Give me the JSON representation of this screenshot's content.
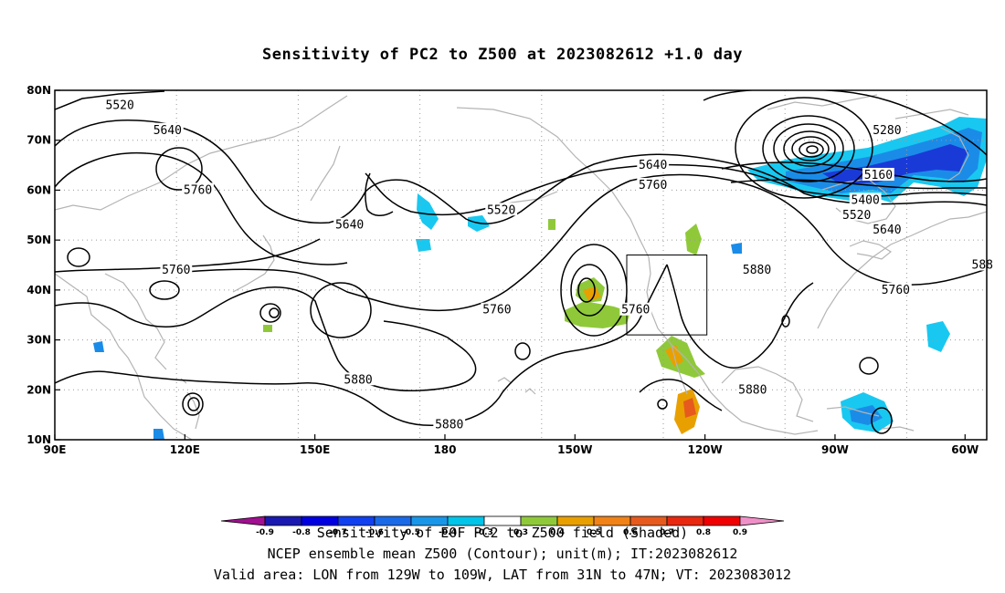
{
  "title": "Sensitivity of PC2 to Z500 at 2023082612 +1.0 day",
  "map": {
    "projection": "cylindrical-equidistant",
    "lon_range": [
      90,
      305
    ],
    "lat_range": [
      10,
      80
    ],
    "grid": "dotted",
    "lon_ticks": [
      {
        "lon": 90,
        "label": "90E"
      },
      {
        "lon": 120,
        "label": "120E"
      },
      {
        "lon": 150,
        "label": "150E"
      },
      {
        "lon": 180,
        "label": "180"
      },
      {
        "lon": 210,
        "label": "150W"
      },
      {
        "lon": 240,
        "label": "120W"
      },
      {
        "lon": 270,
        "label": "90W"
      },
      {
        "lon": 300,
        "label": "60W"
      }
    ],
    "lat_ticks": [
      {
        "lat": 10,
        "label": "10N"
      },
      {
        "lat": 20,
        "label": "20N"
      },
      {
        "lat": 30,
        "label": "30N"
      },
      {
        "lat": 40,
        "label": "40N"
      },
      {
        "lat": 50,
        "label": "50N"
      },
      {
        "lat": 60,
        "label": "60N"
      },
      {
        "lat": 70,
        "label": "70N"
      },
      {
        "lat": 80,
        "label": "80N"
      }
    ],
    "contour_interval_m": 40,
    "contour_labels": [
      {
        "text": "5520",
        "lon": 105,
        "lat": 77
      },
      {
        "text": "5640",
        "lon": 116,
        "lat": 72
      },
      {
        "text": "5760",
        "lon": 123,
        "lat": 60
      },
      {
        "text": "5640",
        "lon": 158,
        "lat": 53
      },
      {
        "text": "5760",
        "lon": 118,
        "lat": 44
      },
      {
        "text": "5520",
        "lon": 193,
        "lat": 56
      },
      {
        "text": "5760",
        "lon": 192,
        "lat": 36
      },
      {
        "text": "5880",
        "lon": 160,
        "lat": 22
      },
      {
        "text": "5880",
        "lon": 181,
        "lat": 13
      },
      {
        "text": "5640",
        "lon": 228,
        "lat": 65
      },
      {
        "text": "5760",
        "lon": 228,
        "lat": 61
      },
      {
        "text": "5760",
        "lon": 224,
        "lat": 36
      },
      {
        "text": "5880",
        "lon": 252,
        "lat": 44
      },
      {
        "text": "5880",
        "lon": 251,
        "lat": 20
      },
      {
        "text": "5280",
        "lon": 282,
        "lat": 72
      },
      {
        "text": "5160",
        "lon": 280,
        "lat": 63
      },
      {
        "text": "5400",
        "lon": 277,
        "lat": 58
      },
      {
        "text": "5520",
        "lon": 275,
        "lat": 55
      },
      {
        "text": "5640",
        "lon": 282,
        "lat": 52
      },
      {
        "text": "5760",
        "lon": 284,
        "lat": 40
      },
      {
        "text": "588",
        "lon": 304,
        "lat": 45
      }
    ],
    "valid_area": {
      "lon": [
        231,
        251
      ],
      "lat": [
        31,
        47
      ]
    }
  },
  "colorbar": {
    "labels": [
      "-0.9",
      "-0.8",
      "-0.7",
      "-0.6",
      "-0.5",
      "-0.4",
      "-0.3",
      "0.3",
      "0.4",
      "0.5",
      "0.6",
      "0.7",
      "0.8",
      "0.9"
    ],
    "colors": [
      "#a01090",
      "#1a1ab0",
      "#0000e0",
      "#1040f0",
      "#1a6ae8",
      "#1a96e8",
      "#00c4e8",
      "#ffffff",
      "#8fc93a",
      "#e8a000",
      "#f08218",
      "#e65a1e",
      "#e8280f",
      "#f00000",
      "#f090c8"
    ]
  },
  "shading_colors": {
    "neg_strong": "#1a3ad8",
    "neg_mid": "#1a8ce8",
    "neg_weak": "#19c8f0",
    "pos_weak": "#8fc93a",
    "pos_mid": "#e8a000",
    "pos_strong": "#e65a1e",
    "coast": "#b4b4b4"
  },
  "footer": {
    "line1": "Sensitivity of EOF PC2 to Z500 field (Shaded)",
    "line2": "NCEP ensemble mean Z500 (Contour); unit(m); IT:2023082612",
    "line3": "Valid area: LON from 129W to 109W, LAT from 31N to 47N; VT: 2023083012"
  }
}
